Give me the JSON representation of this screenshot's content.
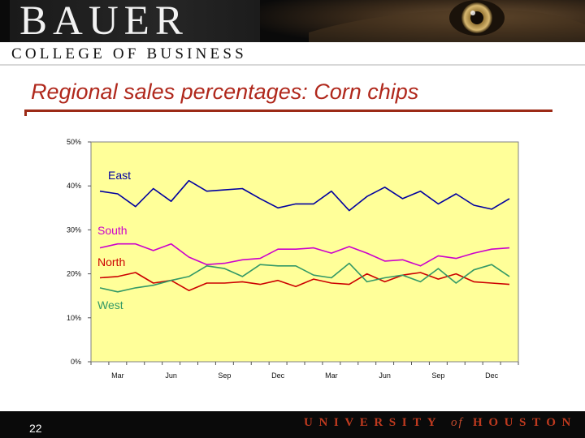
{
  "header": {
    "logo_text": "BAUER",
    "subtitle": "COLLEGE OF BUSINESS"
  },
  "slide": {
    "title": "Regional sales percentages:  Corn chips",
    "page_number": "22"
  },
  "footer": {
    "university_word": "UNIVERSITY",
    "of_word": "of",
    "houston_word": "HOUSTON"
  },
  "colors": {
    "plot_background": "#ffff99",
    "title_color": "#b0281c",
    "footer_text": "#bf3a1f"
  },
  "chart_data": {
    "type": "line",
    "title": "",
    "xlabel": "",
    "ylabel": "",
    "ylim": [
      0,
      50
    ],
    "grid": false,
    "legend": "inline labels at left of plot",
    "yticks": [
      "0%",
      "10%",
      "20%",
      "30%",
      "40%",
      "50%"
    ],
    "xticks": [
      "Mar",
      "Jun",
      "Sep",
      "Dec",
      "Mar",
      "Jun",
      "Sep",
      "Dec"
    ],
    "series": [
      {
        "name": "East",
        "color": "#0000a0",
        "values": [
          38.8,
          38.2,
          35.3,
          39.4,
          36.5,
          41.2,
          38.8,
          39.1,
          39.4,
          37.1,
          35.0,
          35.9,
          35.9,
          38.8,
          34.4,
          37.6,
          39.7,
          37.1,
          38.8,
          35.9,
          38.2,
          35.6,
          34.7,
          37.1
        ]
      },
      {
        "name": "South",
        "color": "#cc00cc",
        "values": [
          25.9,
          26.8,
          26.8,
          25.3,
          26.8,
          23.8,
          22.1,
          22.4,
          23.2,
          23.5,
          25.6,
          25.6,
          25.9,
          24.7,
          26.2,
          24.7,
          22.9,
          23.2,
          21.8,
          24.1,
          23.5,
          24.7,
          25.6,
          25.9
        ]
      },
      {
        "name": "North",
        "color": "#cc0000",
        "values": [
          19.1,
          19.4,
          20.3,
          17.9,
          18.5,
          16.2,
          17.9,
          17.9,
          18.2,
          17.6,
          18.5,
          17.1,
          18.8,
          17.9,
          17.6,
          20.0,
          18.2,
          19.7,
          20.3,
          18.8,
          20.0,
          18.2,
          17.9,
          17.6
        ]
      },
      {
        "name": "West",
        "color": "#339966",
        "values": [
          16.8,
          15.9,
          16.8,
          17.4,
          18.5,
          19.4,
          21.8,
          21.2,
          19.4,
          22.1,
          21.8,
          21.8,
          19.7,
          19.1,
          22.4,
          18.2,
          19.1,
          19.7,
          18.2,
          21.2,
          17.9,
          20.9,
          22.1,
          19.4
        ]
      }
    ]
  }
}
